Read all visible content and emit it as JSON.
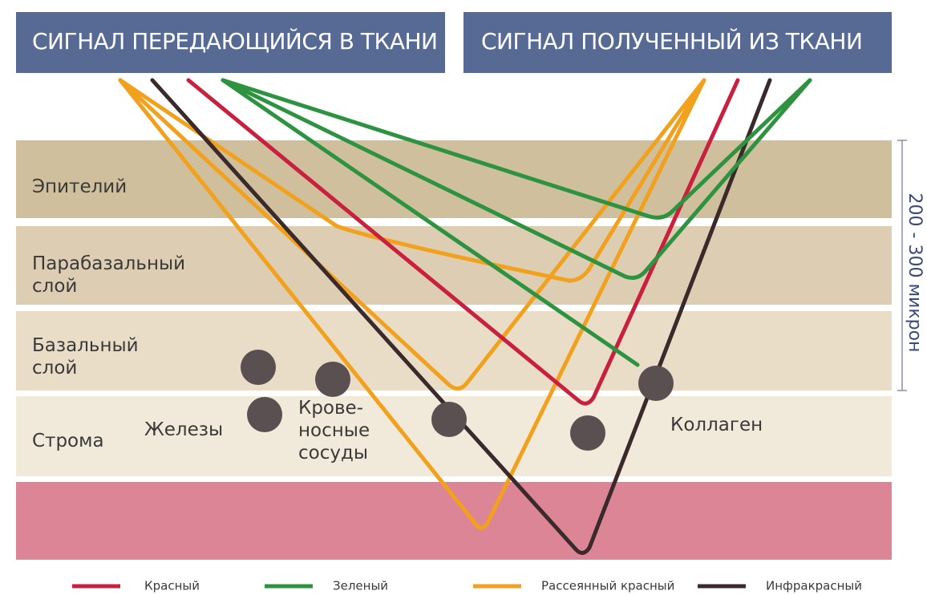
{
  "header": {
    "left_title": "СИГНАЛ ПЕРЕДАЮЩИЙСЯ В ТКАНИ",
    "right_title": "СИГНАЛ ПОЛУЧЕННЫЙ ИЗ ТКАНИ"
  },
  "layers": [
    {
      "label": [
        "Эпителий"
      ]
    },
    {
      "label": [
        "Парабазальный",
        "слой"
      ]
    },
    {
      "label": [
        "Базальный",
        "слой"
      ]
    },
    {
      "label": [
        "Строма"
      ]
    }
  ],
  "annotations": {
    "glands": "Железы",
    "vessels": [
      "Крове-",
      "носные",
      "сосуды"
    ],
    "collagen": "Коллаген",
    "scale": "200 - 300 микрон"
  },
  "legend": [
    "Красный",
    "Зеленый",
    "Рассеянный красный",
    "Инфракрасный"
  ]
}
